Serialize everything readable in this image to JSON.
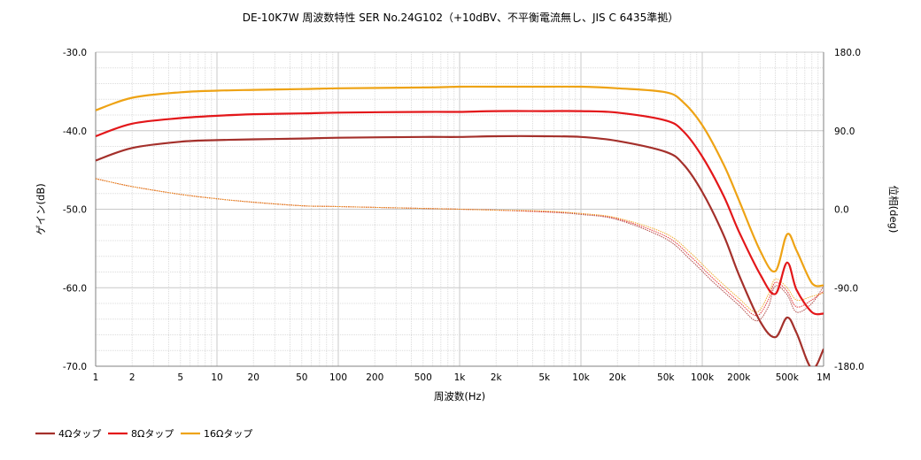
{
  "chart_data": {
    "type": "line",
    "title": "DE-10K7W 周波数特性 SER No.24G102（+10dBV、不平衡電流無し、JIS C 6435準拠）",
    "xlabel": "周波数(Hz)",
    "ylabel": "ゲイン(dB)",
    "y2label": "位相(deg)",
    "x_scale": "log",
    "xlim": [
      1,
      1000000
    ],
    "ylim": [
      -70,
      -30
    ],
    "y2lim": [
      -180,
      180
    ],
    "grid": true,
    "legend_position": "bottom-left",
    "x_ticks": [
      "1",
      "2",
      "5",
      "10",
      "20",
      "50",
      "100",
      "200",
      "500",
      "1k",
      "2k",
      "5k",
      "10k",
      "20k",
      "50k",
      "100k",
      "200k",
      "500k",
      "1M"
    ],
    "y_ticks": [
      "-30.0",
      "-40.0",
      "-50.0",
      "-60.0",
      "-70.0"
    ],
    "y2_ticks": [
      "180.0",
      "90.0",
      "0.0",
      "-90.0",
      "-180.0"
    ],
    "colors": {
      "4Ω": "#a4302b",
      "8Ω": "#e3171a",
      "16Ω": "#eea315",
      "grid": "#d0d0d0",
      "axis": "#808080"
    },
    "series": [
      {
        "name": "4Ωタップ",
        "color": "#a4302b",
        "gain": [
          [
            1,
            -43.8
          ],
          [
            2,
            -42.2
          ],
          [
            5,
            -41.4
          ],
          [
            10,
            -41.2
          ],
          [
            20,
            -41.1
          ],
          [
            50,
            -41.0
          ],
          [
            100,
            -40.9
          ],
          [
            500,
            -40.8
          ],
          [
            1000,
            -40.8
          ],
          [
            2000,
            -40.7
          ],
          [
            5000,
            -40.7
          ],
          [
            10000,
            -40.8
          ],
          [
            20000,
            -41.3
          ],
          [
            50000,
            -42.7
          ],
          [
            70000,
            -44.3
          ],
          [
            100000,
            -47.8
          ],
          [
            150000,
            -53.3
          ],
          [
            200000,
            -58.3
          ],
          [
            300000,
            -64.3
          ],
          [
            400000,
            -66.3
          ],
          [
            500000,
            -63.8
          ],
          [
            600000,
            -65.8
          ],
          [
            800000,
            -70.3
          ],
          [
            1000000,
            -67.8
          ]
        ],
        "phase": [
          [
            1,
            35
          ],
          [
            2,
            26
          ],
          [
            5,
            17
          ],
          [
            10,
            12
          ],
          [
            20,
            8
          ],
          [
            50,
            4
          ],
          [
            100,
            3
          ],
          [
            1000,
            0
          ],
          [
            2000,
            -1
          ],
          [
            5000,
            -3
          ],
          [
            10000,
            -6
          ],
          [
            20000,
            -12
          ],
          [
            50000,
            -34
          ],
          [
            80000,
            -58
          ],
          [
            120000,
            -82
          ],
          [
            200000,
            -110
          ],
          [
            280000,
            -128
          ],
          [
            350000,
            -112
          ],
          [
            400000,
            -88
          ],
          [
            500000,
            -98
          ],
          [
            600000,
            -118
          ],
          [
            800000,
            -108
          ],
          [
            1000000,
            -88
          ]
        ]
      },
      {
        "name": "8Ωタップ",
        "color": "#e3171a",
        "gain": [
          [
            1,
            -40.7
          ],
          [
            2,
            -39.1
          ],
          [
            5,
            -38.4
          ],
          [
            10,
            -38.1
          ],
          [
            20,
            -37.9
          ],
          [
            50,
            -37.8
          ],
          [
            100,
            -37.7
          ],
          [
            500,
            -37.6
          ],
          [
            1000,
            -37.6
          ],
          [
            2000,
            -37.5
          ],
          [
            5000,
            -37.5
          ],
          [
            10000,
            -37.5
          ],
          [
            20000,
            -37.7
          ],
          [
            50000,
            -38.7
          ],
          [
            70000,
            -40.1
          ],
          [
            100000,
            -43.3
          ],
          [
            150000,
            -48.3
          ],
          [
            200000,
            -52.8
          ],
          [
            300000,
            -58.3
          ],
          [
            400000,
            -60.8
          ],
          [
            500000,
            -56.8
          ],
          [
            600000,
            -60.3
          ],
          [
            800000,
            -63.1
          ],
          [
            1000000,
            -63.3
          ]
        ],
        "phase": [
          [
            1,
            35
          ],
          [
            2,
            26
          ],
          [
            5,
            17
          ],
          [
            10,
            12
          ],
          [
            20,
            8
          ],
          [
            50,
            4
          ],
          [
            100,
            3
          ],
          [
            1000,
            0
          ],
          [
            2000,
            -1
          ],
          [
            5000,
            -3
          ],
          [
            10000,
            -5
          ],
          [
            20000,
            -11
          ],
          [
            50000,
            -31
          ],
          [
            80000,
            -54
          ],
          [
            120000,
            -78
          ],
          [
            200000,
            -106
          ],
          [
            280000,
            -122
          ],
          [
            350000,
            -104
          ],
          [
            400000,
            -84
          ],
          [
            500000,
            -94
          ],
          [
            600000,
            -112
          ],
          [
            800000,
            -104
          ],
          [
            1000000,
            -94
          ]
        ]
      },
      {
        "name": "16Ωタップ",
        "color": "#eea315",
        "gain": [
          [
            1,
            -37.4
          ],
          [
            2,
            -35.8
          ],
          [
            5,
            -35.1
          ],
          [
            10,
            -34.9
          ],
          [
            20,
            -34.8
          ],
          [
            50,
            -34.7
          ],
          [
            100,
            -34.6
          ],
          [
            500,
            -34.5
          ],
          [
            1000,
            -34.4
          ],
          [
            2000,
            -34.4
          ],
          [
            5000,
            -34.4
          ],
          [
            10000,
            -34.4
          ],
          [
            20000,
            -34.6
          ],
          [
            50000,
            -35.1
          ],
          [
            70000,
            -36.4
          ],
          [
            100000,
            -39.3
          ],
          [
            150000,
            -44.3
          ],
          [
            200000,
            -48.8
          ],
          [
            300000,
            -55.3
          ],
          [
            400000,
            -57.9
          ],
          [
            500000,
            -53.2
          ],
          [
            600000,
            -55.3
          ],
          [
            800000,
            -59.4
          ],
          [
            1000000,
            -59.7
          ]
        ],
        "phase": [
          [
            1,
            35
          ],
          [
            2,
            26
          ],
          [
            5,
            17
          ],
          [
            10,
            12
          ],
          [
            20,
            8
          ],
          [
            50,
            4
          ],
          [
            100,
            3
          ],
          [
            1000,
            0
          ],
          [
            2000,
            -1
          ],
          [
            5000,
            -2
          ],
          [
            10000,
            -5
          ],
          [
            20000,
            -10
          ],
          [
            50000,
            -28
          ],
          [
            80000,
            -50
          ],
          [
            120000,
            -74
          ],
          [
            200000,
            -102
          ],
          [
            280000,
            -118
          ],
          [
            350000,
            -98
          ],
          [
            400000,
            -80
          ],
          [
            500000,
            -90
          ],
          [
            600000,
            -104
          ],
          [
            800000,
            -100
          ],
          [
            1000000,
            -96
          ]
        ]
      }
    ]
  }
}
